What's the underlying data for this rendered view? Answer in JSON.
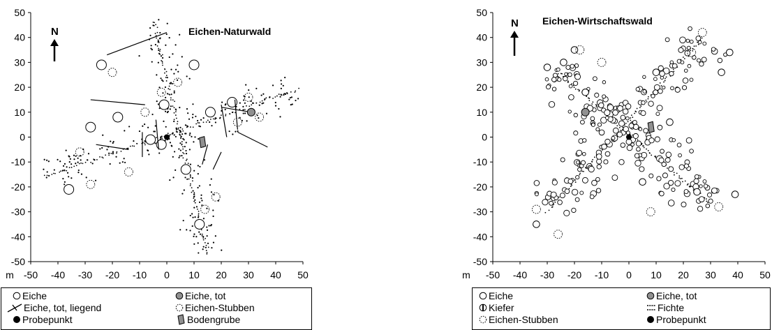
{
  "chart_data": [
    {
      "type": "scatter",
      "title": "Eichen-Naturwald",
      "axis_unit": "m",
      "north": "N",
      "xlim": [
        -50,
        50
      ],
      "ylim": [
        -50,
        50
      ],
      "xticks": [
        "-50",
        "-40",
        "-30",
        "-20",
        "-10",
        "0",
        "10",
        "20",
        "30",
        "40",
        "50"
      ],
      "yticks": [
        "50",
        "40",
        "30",
        "20",
        "10",
        "0",
        "-10",
        "-20",
        "-30",
        "-40",
        "-50"
      ],
      "legend": [
        "Eiche",
        "Eiche, tot",
        "Eiche, tot, liegend",
        "Eichen-Stubben",
        "Probepunkt",
        "Bodengrube"
      ],
      "colors": {
        "eiche_tot": "#909090",
        "bodengrube": "#909090"
      },
      "transects": [
        [
          [
            -45,
            -16
          ],
          [
            48,
            19
          ]
        ],
        [
          [
            -5,
            47
          ],
          [
            15,
            -47
          ]
        ]
      ],
      "trees_large": [
        [
          -24,
          29
        ],
        [
          10,
          29
        ],
        [
          -36,
          -21
        ],
        [
          -2,
          -3
        ],
        [
          -1,
          13
        ],
        [
          -18,
          8
        ],
        [
          16,
          10
        ],
        [
          7,
          -13
        ],
        [
          12,
          -35
        ],
        [
          -28,
          4
        ],
        [
          24,
          14
        ],
        [
          -6,
          -1
        ]
      ],
      "stubs": [
        [
          -28,
          -19
        ],
        [
          -8,
          10
        ],
        [
          14,
          -29
        ],
        [
          26,
          6
        ],
        [
          -2,
          18
        ],
        [
          -14,
          -14
        ],
        [
          30,
          16
        ],
        [
          18,
          -24
        ],
        [
          -32,
          -6
        ],
        [
          4,
          22
        ],
        [
          -20,
          26
        ],
        [
          34,
          8
        ]
      ],
      "dead": [
        [
          31,
          10
        ]
      ],
      "lying_dead": [
        [
          [
            -22,
            33
          ],
          [
            0,
            42
          ]
        ],
        [
          [
            -26,
            -3
          ],
          [
            -14,
            -5
          ]
        ],
        [
          [
            -9,
            2
          ],
          [
            -9,
            -8
          ]
        ],
        [
          [
            -4,
            7
          ],
          [
            -3,
            -5
          ]
        ],
        [
          [
            20,
            13
          ],
          [
            22,
            0
          ]
        ],
        [
          [
            25,
            15
          ],
          [
            26,
            3
          ]
        ],
        [
          [
            15,
            -3
          ],
          [
            13,
            -11
          ]
        ],
        [
          [
            20,
            -6
          ],
          [
            17,
            -13
          ]
        ],
        [
          [
            26,
            2
          ],
          [
            37,
            -4
          ]
        ],
        [
          [
            20,
            12
          ],
          [
            31,
            10
          ]
        ],
        [
          [
            -28,
            15
          ],
          [
            -8,
            13
          ]
        ]
      ],
      "probepunkt": [
        0,
        0
      ],
      "bodengrube": [
        13,
        -2
      ]
    },
    {
      "type": "scatter",
      "title": "Eichen-Wirtschaftswald",
      "axis_unit": "m",
      "north": "N",
      "xlim": [
        -50,
        50
      ],
      "ylim": [
        -50,
        50
      ],
      "xticks": [
        "-50",
        "-40",
        "-30",
        "-20",
        "-10",
        "0",
        "10",
        "20",
        "30",
        "40",
        "50"
      ],
      "yticks": [
        "50",
        "40",
        "30",
        "20",
        "10",
        "0",
        "-10",
        "-20",
        "-30",
        "-40",
        "-50"
      ],
      "legend": [
        "Eiche",
        "Eiche, tot",
        "Kiefer",
        "Fichte",
        "Eichen-Stubben",
        "Probepunkt"
      ],
      "colors": {
        "eiche_tot": "#909090",
        "bodengrube": "#909090"
      },
      "transects": [
        [
          [
            -27,
            27
          ],
          [
            30,
            -27
          ]
        ],
        [
          [
            -30,
            -30
          ],
          [
            27,
            40
          ]
        ]
      ],
      "trees_large": [
        [
          39,
          -23
        ],
        [
          15,
          6
        ],
        [
          -24,
          30
        ],
        [
          37,
          34
        ],
        [
          -30,
          28
        ],
        [
          25,
          -22
        ],
        [
          -34,
          -35
        ],
        [
          10,
          26
        ],
        [
          -20,
          35
        ],
        [
          -16,
          18
        ],
        [
          5,
          -18
        ],
        [
          34,
          26
        ]
      ],
      "stubs": [
        [
          -18,
          35
        ],
        [
          27,
          42
        ],
        [
          -34,
          -29
        ],
        [
          -10,
          30
        ],
        [
          33,
          -28
        ],
        [
          23,
          34
        ],
        [
          -26,
          -39
        ],
        [
          8,
          -30
        ]
      ],
      "dead": [
        [
          -16,
          10
        ]
      ],
      "lying_dead": [],
      "probepunkt": [
        0,
        0
      ],
      "bodengrube": [
        8,
        4
      ]
    }
  ]
}
